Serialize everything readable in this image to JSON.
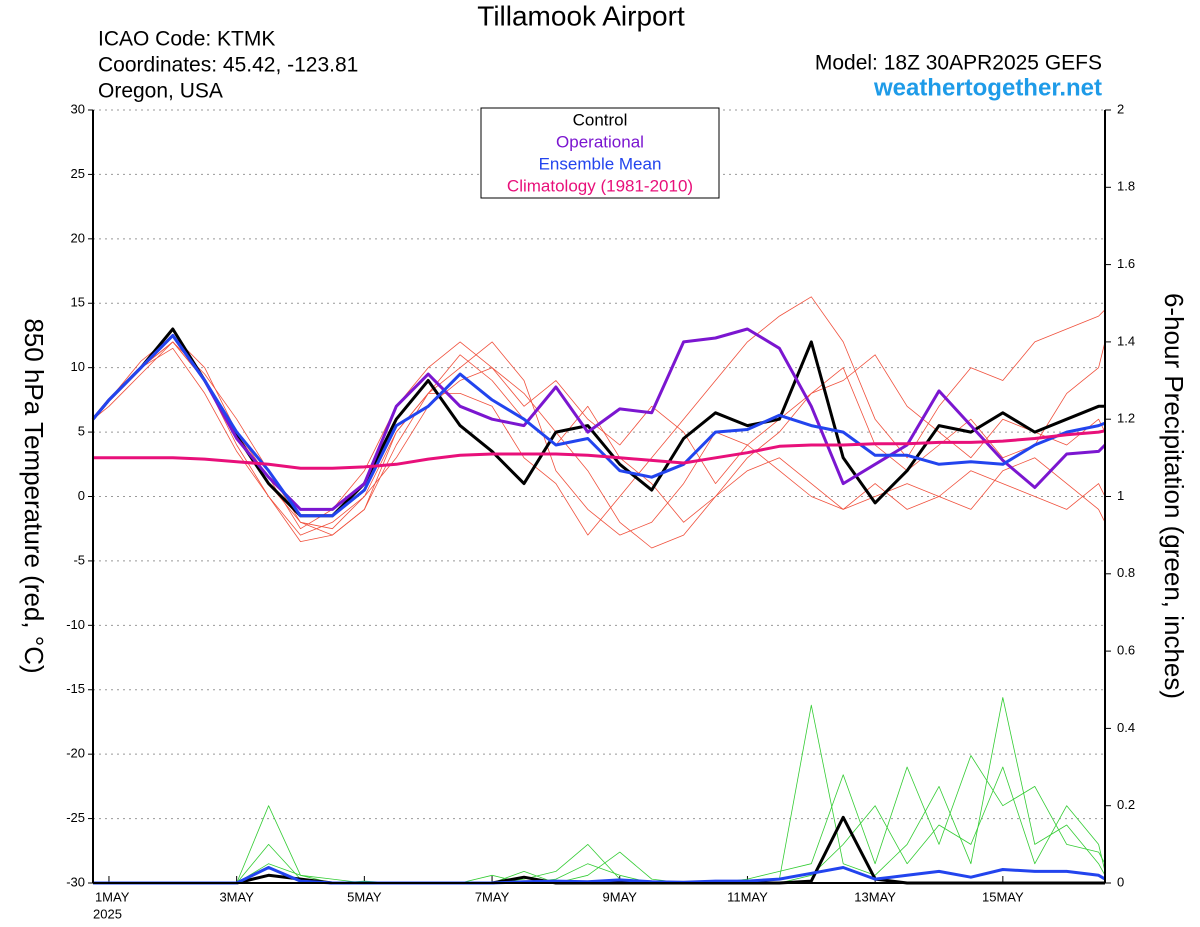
{
  "chart_data": {
    "type": "line",
    "title": "Tillamook Airport",
    "info": [
      "ICAO Code: KTMK",
      "Coordinates: 45.42, -123.81",
      "Oregon, USA"
    ],
    "model": "Model: 18Z 30APR2025 GEFS",
    "source": "weathertogether.net",
    "ylabel": "850 hPa Temperature (red, °C)",
    "y2label": "6-hour Precipitation (green, inches)",
    "year": "2025",
    "grid": true,
    "xlim": [
      0.75,
      16.6
    ],
    "xticks": [
      {
        "value": 1,
        "label": "1MAY"
      },
      {
        "value": 3,
        "label": "3MAY"
      },
      {
        "value": 5,
        "label": "5MAY"
      },
      {
        "value": 7,
        "label": "7MAY"
      },
      {
        "value": 9,
        "label": "9MAY"
      },
      {
        "value": 11,
        "label": "11MAY"
      },
      {
        "value": 13,
        "label": "13MAY"
      },
      {
        "value": 15,
        "label": "15MAY"
      }
    ],
    "ylim": [
      -30,
      30
    ],
    "yticks": [
      30,
      25,
      20,
      15,
      10,
      5,
      0,
      -5,
      -10,
      -15,
      -20,
      -25,
      -30
    ],
    "y2lim": [
      0,
      2
    ],
    "y2ticks": [
      0,
      0.2,
      0.4,
      0.6,
      0.8,
      1,
      1.2,
      1.4,
      1.6,
      1.8,
      2
    ],
    "x": [
      0.75,
      1,
      1.5,
      2,
      2.5,
      3,
      3.5,
      4,
      4.5,
      5,
      5.5,
      6,
      6.5,
      7,
      7.5,
      8,
      8.5,
      9,
      9.5,
      10,
      10.5,
      11,
      11.5,
      12,
      12.5,
      13,
      13.5,
      14,
      14.5,
      15,
      15.5,
      16,
      16.5,
      16.6
    ],
    "series": [
      {
        "color": "#f0503c",
        "values": [
          6,
          7.5,
          10,
          12,
          9.5,
          6,
          2,
          -2,
          -3,
          -1,
          4,
          8,
          11,
          9,
          6,
          4,
          7,
          3,
          1,
          -2,
          0,
          3,
          5,
          8,
          10,
          4,
          2,
          4,
          6,
          3,
          4,
          8,
          10,
          12
        ]
      },
      {
        "color": "#f0503c",
        "values": [
          6,
          7,
          9.5,
          12,
          9,
          4,
          0,
          -3,
          -2,
          0,
          3,
          7,
          9,
          10,
          8,
          5,
          2,
          -2,
          -4,
          -3,
          0,
          2,
          3,
          1,
          -1,
          0,
          1,
          0,
          2,
          1,
          0,
          -1,
          1,
          0
        ]
      },
      {
        "color": "#f0503c",
        "values": [
          6,
          7.5,
          10,
          11.5,
          8,
          3.5,
          0,
          -3.5,
          -3,
          -1,
          5,
          8,
          8,
          7,
          3,
          1,
          -3,
          0,
          3,
          6,
          9,
          12,
          14,
          15.5,
          12,
          6,
          3,
          7,
          10,
          9,
          12,
          13,
          14,
          14.5
        ]
      },
      {
        "color": "#f0503c",
        "values": [
          6,
          7.5,
          10,
          12,
          9,
          5,
          1.5,
          -2.5,
          -1,
          2,
          7,
          10,
          12,
          10,
          7,
          9,
          6,
          4,
          7,
          5,
          1,
          4,
          2,
          0,
          -1,
          1,
          -1,
          0,
          -1,
          2,
          3,
          1,
          -1,
          -2
        ]
      },
      {
        "color": "#f0503c",
        "values": [
          6,
          7.5,
          10.5,
          12.5,
          10,
          5,
          1,
          -2,
          -2.5,
          0,
          5,
          8,
          10,
          12,
          9,
          2,
          -1,
          -3,
          -2,
          1,
          5,
          4,
          6,
          8,
          9,
          11,
          7,
          5,
          3,
          6,
          5,
          4,
          6,
          5
        ]
      },
      {
        "color": "#33cc33",
        "axis": "y2",
        "values": [
          0,
          0,
          0,
          0,
          0,
          0,
          0.2,
          0.02,
          0,
          0.005,
          0,
          0,
          0,
          0,
          0.03,
          0,
          0.02,
          0.08,
          0.01,
          0,
          0,
          0,
          0.01,
          0.46,
          0.05,
          0.02,
          0.1,
          0.25,
          0.05,
          0.48,
          0.1,
          0.15,
          0.05,
          0.02
        ]
      },
      {
        "color": "#33cc33",
        "axis": "y2",
        "values": [
          0,
          0,
          0,
          0,
          0,
          0,
          0.1,
          0.01,
          0,
          0,
          0,
          0,
          0,
          0.02,
          0,
          0.01,
          0.05,
          0.02,
          0,
          0,
          0,
          0.01,
          0.03,
          0.05,
          0.28,
          0.05,
          0.3,
          0.1,
          0.33,
          0.2,
          0.25,
          0.1,
          0.08,
          0.05
        ]
      },
      {
        "color": "#33cc33",
        "axis": "y2",
        "values": [
          0,
          0,
          0,
          0,
          0,
          0,
          0.05,
          0.02,
          0.01,
          0,
          0,
          0,
          0,
          0,
          0.01,
          0.03,
          0.1,
          0.01,
          0,
          0,
          0,
          0,
          0,
          0.02,
          0.1,
          0.2,
          0.05,
          0.15,
          0.1,
          0.3,
          0.05,
          0.2,
          0.1,
          0.03
        ]
      },
      {
        "name": "Control",
        "color": "#000000",
        "values": [
          6,
          7.5,
          10,
          13,
          9,
          4.7,
          1,
          -1.5,
          -1.5,
          1,
          6,
          9,
          5.5,
          3.5,
          1,
          5,
          5.5,
          2.5,
          0.5,
          4.5,
          6.5,
          5.5,
          6,
          12,
          3,
          -0.5,
          2,
          5.5,
          5,
          6.5,
          5,
          6,
          7,
          7
        ]
      },
      {
        "name": "Operational",
        "color": "#7b16d0",
        "values": [
          6,
          7.5,
          10,
          12.5,
          9,
          4.5,
          1.5,
          -1,
          -1,
          1,
          7,
          9.5,
          7,
          6,
          5.5,
          8.5,
          5,
          6.8,
          6.5,
          12,
          12.3,
          13,
          11.5,
          7,
          1,
          2.5,
          4,
          8.2,
          5.5,
          2.8,
          0.7,
          3.3,
          3.5,
          4
        ]
      },
      {
        "name": "Ensemble Mean",
        "color": "#2244ee",
        "values": [
          6,
          7.5,
          10,
          12.5,
          9,
          5,
          2,
          -1.5,
          -1.5,
          0.5,
          5.5,
          7,
          9.5,
          7.5,
          6,
          4,
          4.5,
          2,
          1.5,
          2.5,
          5,
          5.2,
          6.3,
          5.5,
          5,
          3.2,
          3.2,
          2.5,
          2.7,
          2.5,
          4,
          5,
          5.5,
          5.7
        ]
      },
      {
        "name": "Climatology (1981-2010)",
        "color": "#e8107a",
        "values": [
          3,
          3,
          3,
          3,
          2.9,
          2.7,
          2.5,
          2.2,
          2.2,
          2.3,
          2.5,
          2.9,
          3.2,
          3.3,
          3.3,
          3.3,
          3.2,
          3,
          2.8,
          2.6,
          3,
          3.4,
          3.9,
          4,
          4,
          4.1,
          4.1,
          4.2,
          4.2,
          4.3,
          4.5,
          4.8,
          5,
          5.1
        ]
      },
      {
        "color": "#000000",
        "axis": "y2",
        "values": [
          0,
          0,
          0,
          0,
          0,
          0,
          0.02,
          0.01,
          0,
          0,
          0,
          0,
          0,
          0,
          0.015,
          0,
          0,
          0,
          0,
          0,
          0,
          0,
          0,
          0.005,
          0.17,
          0.01,
          0,
          0,
          0,
          0,
          0,
          0,
          0,
          0
        ]
      },
      {
        "color": "#2244ee",
        "axis": "y2",
        "values": [
          0,
          0,
          0,
          0,
          0,
          0,
          0.04,
          0.005,
          0,
          0,
          0,
          0,
          0,
          0,
          0.003,
          0.005,
          0.003,
          0.008,
          0.003,
          0.002,
          0.005,
          0.005,
          0.01,
          0.025,
          0.04,
          0.01,
          0.02,
          0.03,
          0.015,
          0.035,
          0.03,
          0.03,
          0.02,
          0.01
        ]
      }
    ]
  }
}
